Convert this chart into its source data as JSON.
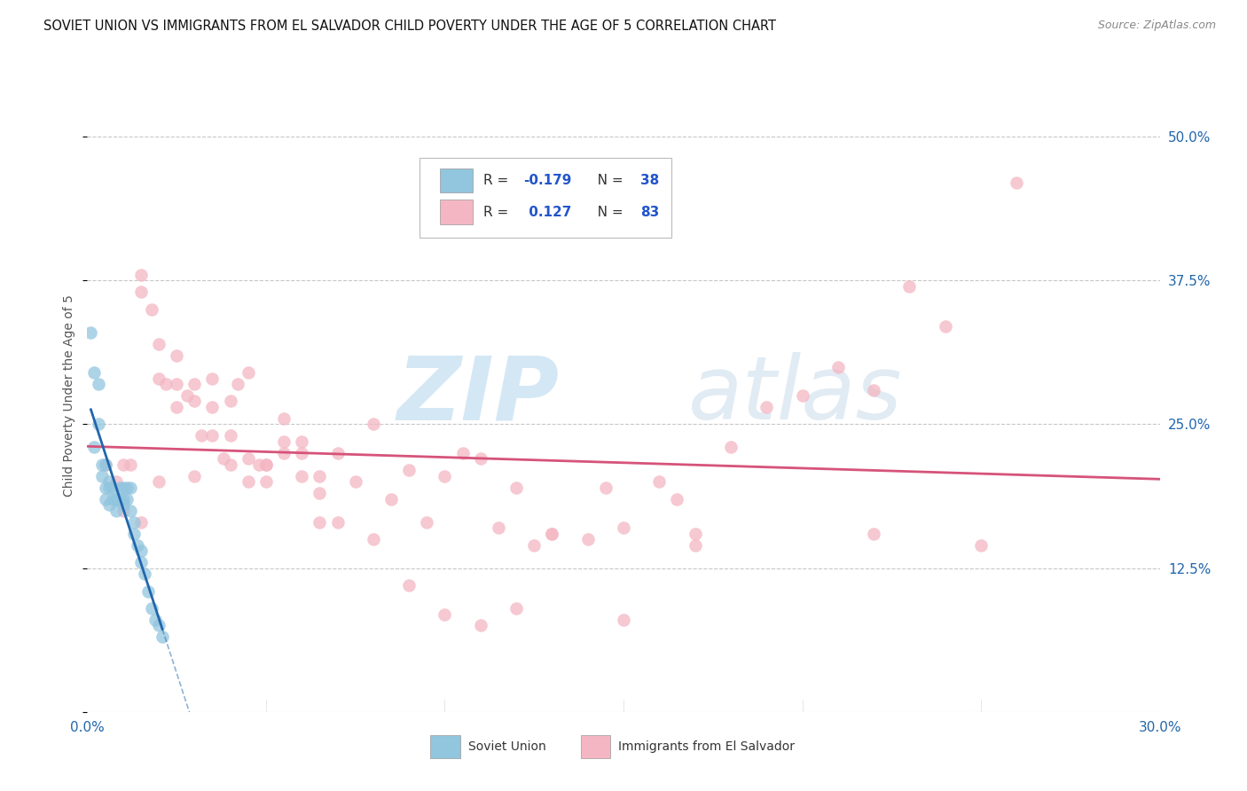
{
  "title": "SOVIET UNION VS IMMIGRANTS FROM EL SALVADOR CHILD POVERTY UNDER THE AGE OF 5 CORRELATION CHART",
  "source": "Source: ZipAtlas.com",
  "ylabel": "Child Poverty Under the Age of 5",
  "x_max": 0.3,
  "y_max": 0.55,
  "y_ticks": [
    0.0,
    0.125,
    0.25,
    0.375,
    0.5
  ],
  "y_tick_labels": [
    "",
    "12.5%",
    "25.0%",
    "37.5%",
    "50.0%"
  ],
  "x_ticks": [
    0.0,
    0.3
  ],
  "x_tick_labels": [
    "0.0%",
    "30.0%"
  ],
  "color_blue": "#92c5de",
  "color_pink": "#f4b6c2",
  "trendline_blue_color": "#2166ac",
  "trendline_pink_color": "#d6537a",
  "watermark_zip": "ZIP",
  "watermark_atlas": "atlas",
  "soviet_scatter_x": [
    0.002,
    0.003,
    0.004,
    0.005,
    0.005,
    0.006,
    0.006,
    0.007,
    0.007,
    0.008,
    0.008,
    0.008,
    0.009,
    0.009,
    0.01,
    0.01,
    0.01,
    0.011,
    0.011,
    0.012,
    0.012,
    0.013,
    0.013,
    0.014,
    0.015,
    0.015,
    0.016,
    0.017,
    0.018,
    0.019,
    0.02,
    0.021,
    0.001,
    0.002,
    0.003,
    0.004,
    0.005,
    0.006
  ],
  "soviet_scatter_y": [
    0.295,
    0.285,
    0.205,
    0.195,
    0.215,
    0.2,
    0.195,
    0.185,
    0.195,
    0.185,
    0.185,
    0.175,
    0.195,
    0.185,
    0.185,
    0.18,
    0.195,
    0.185,
    0.195,
    0.175,
    0.195,
    0.165,
    0.155,
    0.145,
    0.14,
    0.13,
    0.12,
    0.105,
    0.09,
    0.08,
    0.075,
    0.065,
    0.33,
    0.23,
    0.25,
    0.215,
    0.185,
    0.18
  ],
  "salvador_scatter_x": [
    0.005,
    0.008,
    0.01,
    0.012,
    0.015,
    0.015,
    0.018,
    0.02,
    0.02,
    0.022,
    0.025,
    0.025,
    0.028,
    0.03,
    0.03,
    0.032,
    0.035,
    0.035,
    0.038,
    0.04,
    0.04,
    0.042,
    0.045,
    0.045,
    0.048,
    0.05,
    0.05,
    0.055,
    0.055,
    0.06,
    0.06,
    0.065,
    0.065,
    0.07,
    0.075,
    0.08,
    0.085,
    0.09,
    0.095,
    0.1,
    0.105,
    0.11,
    0.115,
    0.12,
    0.125,
    0.13,
    0.14,
    0.145,
    0.15,
    0.16,
    0.165,
    0.17,
    0.18,
    0.19,
    0.2,
    0.21,
    0.22,
    0.23,
    0.24,
    0.25,
    0.01,
    0.015,
    0.02,
    0.025,
    0.03,
    0.035,
    0.04,
    0.045,
    0.05,
    0.055,
    0.06,
    0.065,
    0.07,
    0.08,
    0.09,
    0.1,
    0.11,
    0.12,
    0.13,
    0.15,
    0.17,
    0.22,
    0.26
  ],
  "salvador_scatter_y": [
    0.215,
    0.2,
    0.215,
    0.215,
    0.38,
    0.365,
    0.35,
    0.29,
    0.32,
    0.285,
    0.31,
    0.285,
    0.275,
    0.27,
    0.285,
    0.24,
    0.265,
    0.24,
    0.22,
    0.27,
    0.215,
    0.285,
    0.22,
    0.295,
    0.215,
    0.215,
    0.2,
    0.235,
    0.225,
    0.205,
    0.225,
    0.205,
    0.19,
    0.225,
    0.2,
    0.25,
    0.185,
    0.21,
    0.165,
    0.205,
    0.225,
    0.22,
    0.16,
    0.195,
    0.145,
    0.155,
    0.15,
    0.195,
    0.16,
    0.2,
    0.185,
    0.155,
    0.23,
    0.265,
    0.275,
    0.3,
    0.28,
    0.37,
    0.335,
    0.145,
    0.175,
    0.165,
    0.2,
    0.265,
    0.205,
    0.29,
    0.24,
    0.2,
    0.215,
    0.255,
    0.235,
    0.165,
    0.165,
    0.15,
    0.11,
    0.085,
    0.075,
    0.09,
    0.155,
    0.08,
    0.145,
    0.155,
    0.46
  ]
}
